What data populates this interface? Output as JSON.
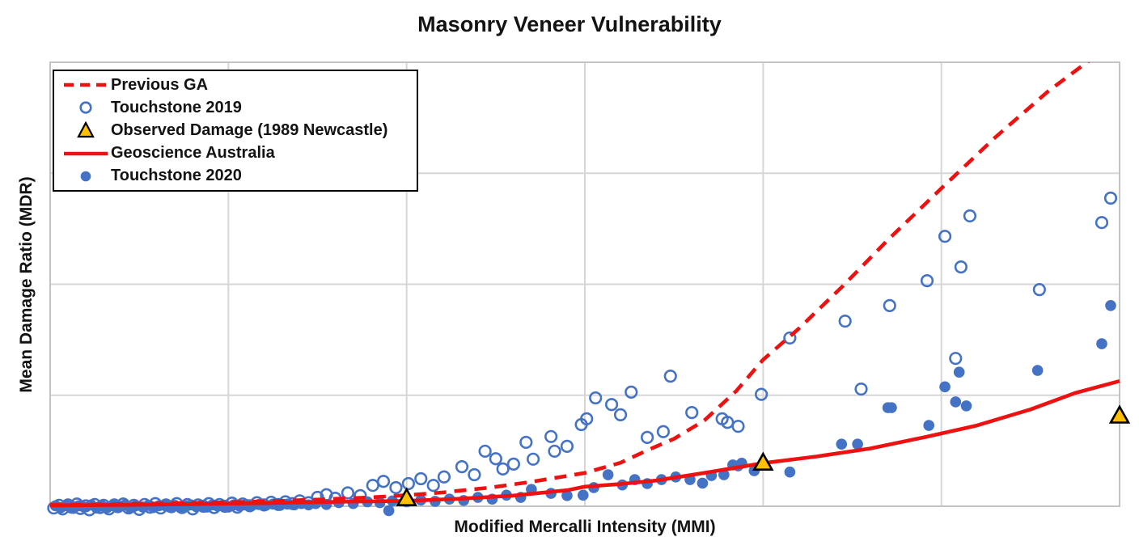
{
  "chart_data": {
    "type": "scatter",
    "title": "Masonry Veneer Vulnerability",
    "xlabel": "Modified Mercalli Intensity (MMI)",
    "ylabel": "Mean Damage Ratio (MDR)",
    "xlim": [
      4,
      10
    ],
    "ylim": [
      0,
      1
    ],
    "x_gridlines": [
      5,
      6,
      7,
      8,
      9
    ],
    "y_gridlines": [
      0.25,
      0.5,
      0.75
    ],
    "axis_tick_labels_visible": false,
    "grid_color": "#d6d6d6",
    "border_color": "#c3c3c3",
    "legend_position": "top-left",
    "series": [
      {
        "name": "Previous GA",
        "kind": "line",
        "style": "dashed",
        "color": "#ee1111",
        "points": [
          [
            4,
            0.003
          ],
          [
            4.3,
            0.004
          ],
          [
            4.6,
            0.006
          ],
          [
            4.9,
            0.008
          ],
          [
            5.2,
            0.011
          ],
          [
            5.5,
            0.015
          ],
          [
            5.8,
            0.02
          ],
          [
            6,
            0.025
          ],
          [
            6.2,
            0.031
          ],
          [
            6.47,
            0.042
          ],
          [
            6.7,
            0.055
          ],
          [
            7,
            0.075
          ],
          [
            7.2,
            0.098
          ],
          [
            7.35,
            0.126
          ],
          [
            7.5,
            0.152
          ],
          [
            7.67,
            0.193
          ],
          [
            7.85,
            0.26
          ],
          [
            8,
            0.33
          ],
          [
            8.2,
            0.4
          ],
          [
            8.45,
            0.497
          ],
          [
            8.7,
            0.6
          ],
          [
            9,
            0.716
          ],
          [
            9.3,
            0.83
          ],
          [
            9.6,
            0.935
          ],
          [
            9.85,
            1.01
          ]
        ]
      },
      {
        "name": "Touchstone 2019",
        "kind": "scatter",
        "marker": "open-circle",
        "color": "#4472c4",
        "points": [
          [
            4.02,
            -0.004
          ],
          [
            4.05,
            0.002
          ],
          [
            4.07,
            -0.006
          ],
          [
            4.1,
            0.003
          ],
          [
            4.12,
            -0.002
          ],
          [
            4.15,
            0.005
          ],
          [
            4.17,
            -0.005
          ],
          [
            4.2,
            0.001
          ],
          [
            4.22,
            -0.008
          ],
          [
            4.25,
            0.004
          ],
          [
            4.28,
            -0.003
          ],
          [
            4.3,
            0.002
          ],
          [
            4.33,
            -0.006
          ],
          [
            4.36,
            0.003
          ],
          [
            4.38,
            -0.001
          ],
          [
            4.41,
            0.005
          ],
          [
            4.44,
            -0.004
          ],
          [
            4.47,
            0.002
          ],
          [
            4.5,
            -0.007
          ],
          [
            4.53,
            0.004
          ],
          [
            4.56,
            -0.002
          ],
          [
            4.59,
            0.006
          ],
          [
            4.62,
            -0.004
          ],
          [
            4.65,
            0.003
          ],
          [
            4.68,
            -0.001
          ],
          [
            4.71,
            0.006
          ],
          [
            4.74,
            -0.003
          ],
          [
            4.77,
            0.004
          ],
          [
            4.8,
            -0.006
          ],
          [
            4.83,
            0.003
          ],
          [
            4.86,
            0
          ],
          [
            4.89,
            0.006
          ],
          [
            4.92,
            -0.003
          ],
          [
            4.95,
            0.004
          ],
          [
            4.98,
            0
          ],
          [
            5.02,
            0.007
          ],
          [
            5.05,
            -0.002
          ],
          [
            5.08,
            0.005
          ],
          [
            5.12,
            0.001
          ],
          [
            5.16,
            0.008
          ],
          [
            5.2,
            0.003
          ],
          [
            5.24,
            0.009
          ],
          [
            5.28,
            0.004
          ],
          [
            5.32,
            0.01
          ],
          [
            5.36,
            0.006
          ],
          [
            5.4,
            0.012
          ],
          [
            5.45,
            0.008
          ],
          [
            5.5,
            0.02
          ],
          [
            5.55,
            0.026
          ],
          [
            5.6,
            0.018
          ],
          [
            5.67,
            0.03
          ],
          [
            5.74,
            0.024
          ],
          [
            5.81,
            0.047
          ],
          [
            5.87,
            0.056
          ],
          [
            5.94,
            0.042
          ],
          [
            6.01,
            0.051
          ],
          [
            6.08,
            0.062
          ],
          [
            6.15,
            0.047
          ],
          [
            6.21,
            0.066
          ],
          [
            6.31,
            0.089
          ],
          [
            6.38,
            0.071
          ],
          [
            6.44,
            0.124
          ],
          [
            6.5,
            0.107
          ],
          [
            6.54,
            0.084
          ],
          [
            6.6,
            0.095
          ],
          [
            6.67,
            0.144
          ],
          [
            6.71,
            0.106
          ],
          [
            6.81,
            0.157
          ],
          [
            6.83,
            0.124
          ],
          [
            6.9,
            0.135
          ],
          [
            6.98,
            0.184
          ],
          [
            7.01,
            0.197
          ],
          [
            7.06,
            0.244
          ],
          [
            7.15,
            0.229
          ],
          [
            7.2,
            0.206
          ],
          [
            7.26,
            0.257
          ],
          [
            7.35,
            0.155
          ],
          [
            7.44,
            0.168
          ],
          [
            7.48,
            0.293
          ],
          [
            7.6,
            0.211
          ],
          [
            7.77,
            0.197
          ],
          [
            7.8,
            0.189
          ],
          [
            7.86,
            0.18
          ],
          [
            7.99,
            0.252
          ],
          [
            8.15,
            0.379
          ],
          [
            8.46,
            0.417
          ],
          [
            8.55,
            0.264
          ],
          [
            8.71,
            0.452
          ],
          [
            8.92,
            0.508
          ],
          [
            9.02,
            0.608
          ],
          [
            9.08,
            0.333
          ],
          [
            9.11,
            0.539
          ],
          [
            9.16,
            0.654
          ],
          [
            9.55,
            0.488
          ],
          [
            9.9,
            0.639
          ],
          [
            9.95,
            0.694
          ]
        ]
      },
      {
        "name": "Observed Damage (1989 Newcastle)",
        "kind": "scatter",
        "marker": "triangle",
        "color": "#ffc000",
        "outline": "#000000",
        "points": [
          [
            6,
            0.018
          ],
          [
            8,
            0.098
          ],
          [
            10,
            0.204
          ]
        ]
      },
      {
        "name": "Geoscience Australia",
        "kind": "line",
        "style": "solid",
        "color": "#ee1111",
        "points": [
          [
            4,
            0.002
          ],
          [
            4.4,
            0.003
          ],
          [
            4.8,
            0.005
          ],
          [
            5.2,
            0.007
          ],
          [
            5.6,
            0.01
          ],
          [
            6,
            0.012
          ],
          [
            6.3,
            0.017
          ],
          [
            6.6,
            0.024
          ],
          [
            6.9,
            0.036
          ],
          [
            7,
            0.044
          ],
          [
            7.2,
            0.05
          ],
          [
            7.4,
            0.058
          ],
          [
            7.67,
            0.075
          ],
          [
            8,
            0.097
          ],
          [
            8.3,
            0.112
          ],
          [
            8.6,
            0.13
          ],
          [
            8.9,
            0.155
          ],
          [
            9.2,
            0.182
          ],
          [
            9.5,
            0.218
          ],
          [
            9.75,
            0.255
          ],
          [
            10,
            0.282
          ]
        ]
      },
      {
        "name": "Touchstone 2020",
        "kind": "scatter",
        "marker": "filled-circle",
        "color": "#4472c4",
        "points": [
          [
            4.03,
            0.001
          ],
          [
            4.06,
            -0.003
          ],
          [
            4.09,
            0.002
          ],
          [
            4.13,
            -0.005
          ],
          [
            4.16,
            0.001
          ],
          [
            4.19,
            -0.002
          ],
          [
            4.23,
            0.003
          ],
          [
            4.26,
            -0.004
          ],
          [
            4.29,
            0.001
          ],
          [
            4.32,
            -0.003
          ],
          [
            4.35,
            0.002
          ],
          [
            4.39,
            -0.001
          ],
          [
            4.42,
            0.003
          ],
          [
            4.45,
            -0.004
          ],
          [
            4.48,
            0.001
          ],
          [
            4.52,
            -0.002
          ],
          [
            4.55,
            0.002
          ],
          [
            4.58,
            -0.003
          ],
          [
            4.61,
            0.001
          ],
          [
            4.64,
            0.003
          ],
          [
            4.67,
            -0.002
          ],
          [
            4.7,
            0.002
          ],
          [
            4.73,
            -0.003
          ],
          [
            4.76,
            0.001
          ],
          [
            4.79,
            0.003
          ],
          [
            4.82,
            -0.001
          ],
          [
            4.85,
            0.002
          ],
          [
            4.88,
            -0.002
          ],
          [
            4.91,
            0.003
          ],
          [
            4.94,
            0
          ],
          [
            4.97,
            0.002
          ],
          [
            5,
            -0.002
          ],
          [
            5.03,
            0.003
          ],
          [
            5.06,
            0.001
          ],
          [
            5.1,
            0.004
          ],
          [
            5.13,
            0.001
          ],
          [
            5.17,
            0.004
          ],
          [
            5.21,
            0.002
          ],
          [
            5.25,
            0.005
          ],
          [
            5.29,
            0.002
          ],
          [
            5.33,
            0.005
          ],
          [
            5.37,
            0.003
          ],
          [
            5.41,
            0.006
          ],
          [
            5.45,
            0.003
          ],
          [
            5.49,
            0.006
          ],
          [
            5.55,
            0.004
          ],
          [
            5.62,
            0.008
          ],
          [
            5.7,
            0.006
          ],
          [
            5.78,
            0.01
          ],
          [
            5.85,
            0.008
          ],
          [
            5.9,
            -0.01
          ],
          [
            5.92,
            0.012
          ],
          [
            6,
            0.01
          ],
          [
            6.08,
            0.014
          ],
          [
            6.16,
            0.011
          ],
          [
            6.24,
            0.016
          ],
          [
            6.32,
            0.013
          ],
          [
            6.4,
            0.02
          ],
          [
            6.48,
            0.016
          ],
          [
            6.56,
            0.025
          ],
          [
            6.64,
            0.02
          ],
          [
            6.7,
            0.038
          ],
          [
            6.81,
            0.029
          ],
          [
            6.9,
            0.024
          ],
          [
            6.99,
            0.025
          ],
          [
            7.05,
            0.042
          ],
          [
            7.13,
            0.071
          ],
          [
            7.21,
            0.048
          ],
          [
            7.28,
            0.06
          ],
          [
            7.35,
            0.051
          ],
          [
            7.43,
            0.06
          ],
          [
            7.51,
            0.066
          ],
          [
            7.59,
            0.06
          ],
          [
            7.66,
            0.052
          ],
          [
            7.71,
            0.069
          ],
          [
            7.78,
            0.071
          ],
          [
            7.83,
            0.093
          ],
          [
            7.86,
            0.091
          ],
          [
            7.88,
            0.097
          ],
          [
            7.95,
            0.08
          ],
          [
            8.15,
            0.077
          ],
          [
            8.44,
            0.14
          ],
          [
            8.53,
            0.14
          ],
          [
            8.7,
            0.222
          ],
          [
            8.72,
            0.222
          ],
          [
            8.93,
            0.182
          ],
          [
            9.02,
            0.269
          ],
          [
            9.08,
            0.235
          ],
          [
            9.1,
            0.302
          ],
          [
            9.14,
            0.226
          ],
          [
            9.54,
            0.306
          ],
          [
            9.9,
            0.366
          ],
          [
            9.95,
            0.452
          ]
        ]
      }
    ]
  },
  "legend": {
    "items": [
      {
        "label": "Previous GA",
        "marker": "dashed-line",
        "series_index": 0
      },
      {
        "label": "Touchstone 2019",
        "marker": "open-circle",
        "series_index": 1
      },
      {
        "label": "Observed Damage (1989 Newcastle)",
        "marker": "triangle",
        "series_index": 2
      },
      {
        "label": "Geoscience Australia",
        "marker": "solid-line",
        "series_index": 3
      },
      {
        "label": "Touchstone 2020",
        "marker": "filled-circle",
        "series_index": 4
      }
    ]
  },
  "colors": {
    "accent_blue": "#4472c4",
    "accent_red": "#ee1111",
    "accent_gold": "#ffc000",
    "gridline": "#d6d6d6",
    "text": "#131313"
  }
}
